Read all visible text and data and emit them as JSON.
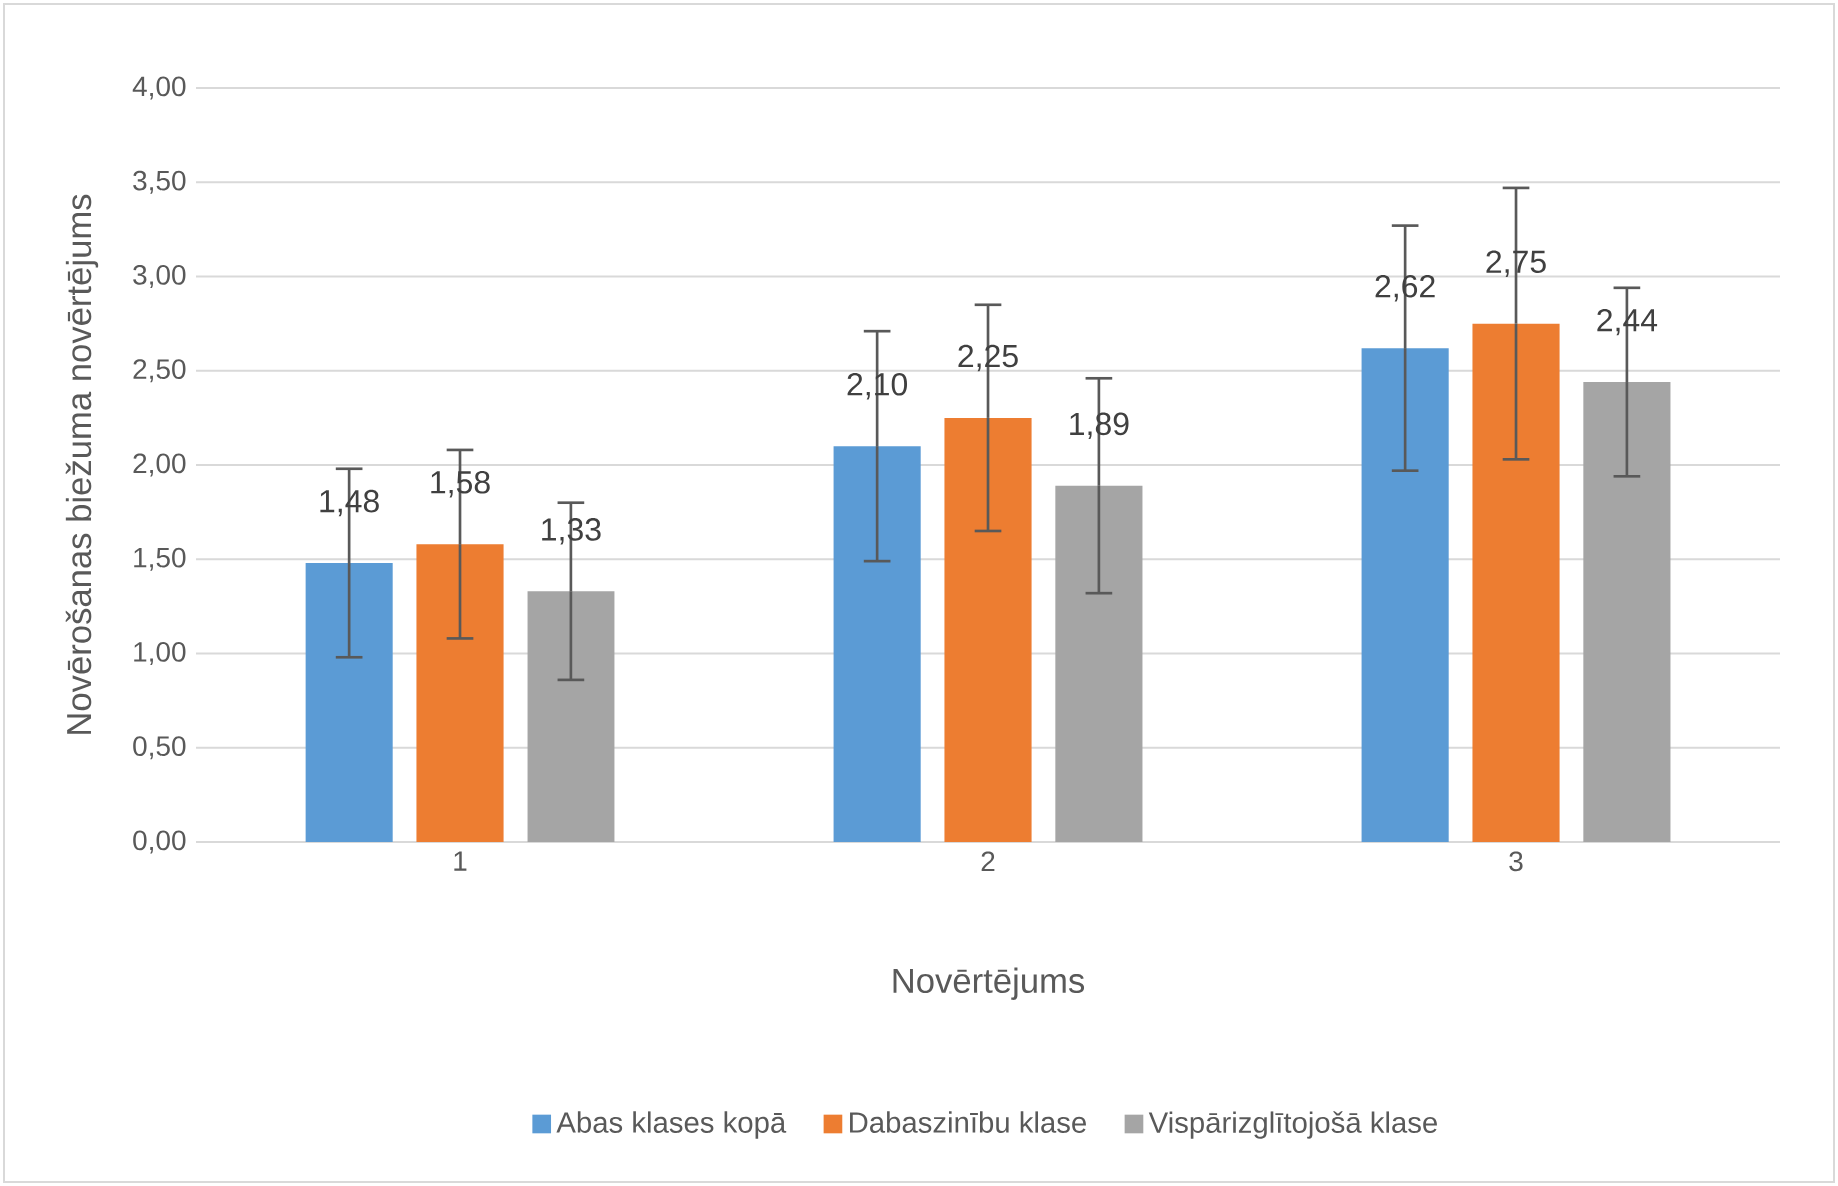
{
  "chart_data": {
    "type": "bar",
    "xlabel": "Novērtējums",
    "ylabel": "Novērošanas biežuma novērtējums",
    "categories": [
      "1",
      "2",
      "3"
    ],
    "series": [
      {
        "name": "Abas klases kopā",
        "color": "#5b9bd5",
        "values": [
          1.48,
          2.1,
          2.62
        ],
        "errors": [
          0.5,
          0.61,
          0.65
        ],
        "value_labels": [
          "1,48",
          "2,10",
          "2,62"
        ]
      },
      {
        "name": "Dabaszinību klase",
        "color": "#ed7d31",
        "values": [
          1.58,
          2.25,
          2.75
        ],
        "errors": [
          0.5,
          0.6,
          0.72
        ],
        "value_labels": [
          "1,58",
          "2,25",
          "2,75"
        ]
      },
      {
        "name": "Vispārizglītojošā klase",
        "color": "#a5a5a5",
        "values": [
          1.33,
          1.89,
          2.44
        ],
        "errors": [
          0.47,
          0.57,
          0.5
        ],
        "value_labels": [
          "1,33",
          "1,89",
          "2,44"
        ]
      }
    ],
    "ylim": [
      0,
      4
    ],
    "yticks": [
      {
        "value": 0,
        "label": "0,00"
      },
      {
        "value": 0.5,
        "label": "0,50"
      },
      {
        "value": 1,
        "label": "1,00"
      },
      {
        "value": 1.5,
        "label": "1,50"
      },
      {
        "value": 2,
        "label": "2,00"
      },
      {
        "value": 2.5,
        "label": "2,50"
      },
      {
        "value": 3,
        "label": "3,00"
      },
      {
        "value": 3.5,
        "label": "3,50"
      },
      {
        "value": 4,
        "label": "4,00"
      }
    ],
    "grid": "y",
    "legend": "bottom"
  }
}
